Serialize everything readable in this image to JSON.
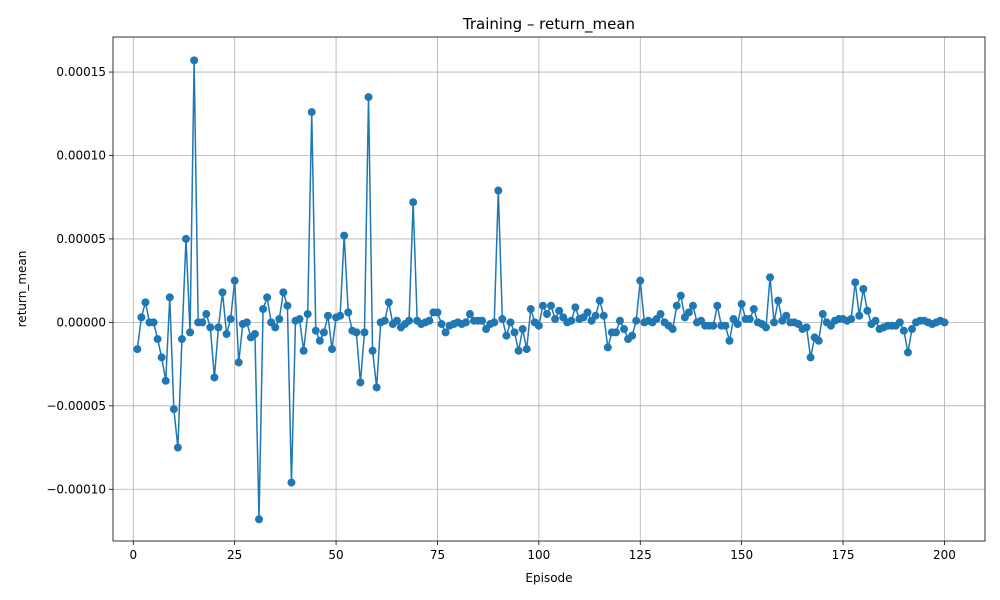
{
  "chart_data": {
    "type": "line",
    "title": "Training – return_mean",
    "xlabel": "Episode",
    "ylabel": "return_mean",
    "xlim": [
      -5,
      210
    ],
    "ylim": [
      -0.000131,
      0.000171
    ],
    "xticks": [
      0,
      25,
      50,
      75,
      100,
      125,
      150,
      175,
      200
    ],
    "xtick_labels": [
      "0",
      "25",
      "50",
      "75",
      "100",
      "125",
      "150",
      "175",
      "200"
    ],
    "yticks": [
      -0.0001,
      -5e-05,
      0,
      5e-05,
      0.0001,
      0.00015
    ],
    "ytick_labels": [
      "−0.00010",
      "−0.00005",
      "0.00000",
      "0.00005",
      "0.00010",
      "0.00015"
    ],
    "grid": true,
    "series": [
      {
        "name": "",
        "color": "#1f77b4",
        "marker": "circle",
        "x": [
          1,
          2,
          3,
          4,
          5,
          6,
          7,
          8,
          9,
          10,
          11,
          12,
          13,
          14,
          15,
          16,
          17,
          18,
          19,
          20,
          21,
          22,
          23,
          24,
          25,
          26,
          27,
          28,
          29,
          30,
          31,
          32,
          33,
          34,
          35,
          36,
          37,
          38,
          39,
          40,
          41,
          42,
          43,
          44,
          45,
          46,
          47,
          48,
          49,
          50,
          51,
          52,
          53,
          54,
          55,
          56,
          57,
          58,
          59,
          60,
          61,
          62,
          63,
          64,
          65,
          66,
          67,
          68,
          69,
          70,
          71,
          72,
          73,
          74,
          75,
          76,
          77,
          78,
          79,
          80,
          81,
          82,
          83,
          84,
          85,
          86,
          87,
          88,
          89,
          90,
          91,
          92,
          93,
          94,
          95,
          96,
          97,
          98,
          99,
          100,
          101,
          102,
          103,
          104,
          105,
          106,
          107,
          108,
          109,
          110,
          111,
          112,
          113,
          114,
          115,
          116,
          117,
          118,
          119,
          120,
          121,
          122,
          123,
          124,
          125,
          126,
          127,
          128,
          129,
          130,
          131,
          132,
          133,
          134,
          135,
          136,
          137,
          138,
          139,
          140,
          141,
          142,
          143,
          144,
          145,
          146,
          147,
          148,
          149,
          150,
          151,
          152,
          153,
          154,
          155,
          156,
          157,
          158,
          159,
          160,
          161,
          162,
          163,
          164,
          165,
          166,
          167,
          168,
          169,
          170,
          171,
          172,
          173,
          174,
          175,
          176,
          177,
          178,
          179,
          180,
          181,
          182,
          183,
          184,
          185,
          186,
          187,
          188,
          189,
          190,
          191,
          192,
          193,
          194,
          195,
          196,
          197,
          198,
          199,
          200
        ],
        "y": [
          -1.6e-05,
          3e-06,
          1.2e-05,
          0,
          0,
          -1e-05,
          -2.1e-05,
          -3.5e-05,
          1.5e-05,
          -5.2e-05,
          -7.5e-05,
          -1e-05,
          5e-05,
          -6e-06,
          0.000157,
          0,
          0,
          5e-06,
          -3e-06,
          -3.3e-05,
          -3e-06,
          1.8e-05,
          -7e-06,
          2e-06,
          2.5e-05,
          -2.4e-05,
          -1e-06,
          0,
          -9e-06,
          -7e-06,
          -0.000118,
          8e-06,
          1.5e-05,
          0,
          -3e-06,
          2e-06,
          1.8e-05,
          1e-05,
          -9.6e-05,
          1e-06,
          2e-06,
          -1.7e-05,
          5e-06,
          0.000126,
          -5e-06,
          -1.1e-05,
          -6e-06,
          4e-06,
          -1.6e-05,
          3e-06,
          4e-06,
          5.2e-05,
          6e-06,
          -5e-06,
          -6e-06,
          -3.6e-05,
          -6e-06,
          0.000135,
          -1.7e-05,
          -3.9e-05,
          0,
          1e-06,
          1.2e-05,
          -1e-06,
          1e-06,
          -3e-06,
          -1e-06,
          1e-06,
          7.2e-05,
          1e-06,
          -1e-06,
          0,
          1e-06,
          6e-06,
          6e-06,
          -1e-06,
          -6e-06,
          -2e-06,
          -1e-06,
          0,
          -1e-06,
          0,
          5e-06,
          1e-06,
          1e-06,
          1e-06,
          -4e-06,
          -1e-06,
          0,
          7.9e-05,
          2e-06,
          -8e-06,
          0,
          -6e-06,
          -1.7e-05,
          -4e-06,
          -1.6e-05,
          8e-06,
          0,
          -2e-06,
          1e-05,
          5e-06,
          1e-05,
          2e-06,
          7e-06,
          3e-06,
          0,
          1e-06,
          9e-06,
          2e-06,
          3e-06,
          6e-06,
          1e-06,
          4e-06,
          1.3e-05,
          4e-06,
          -1.5e-05,
          -6e-06,
          -6e-06,
          1e-06,
          -4e-06,
          -1e-05,
          -8e-06,
          1e-06,
          2.5e-05,
          0,
          1e-06,
          0,
          2e-06,
          5e-06,
          0,
          -2e-06,
          -4e-06,
          1e-05,
          1.6e-05,
          3e-06,
          6e-06,
          1e-05,
          0,
          1e-06,
          -2e-06,
          -2e-06,
          -2e-06,
          1e-05,
          -2e-06,
          -2e-06,
          -1.1e-05,
          2e-06,
          -1e-06,
          1.1e-05,
          2e-06,
          2e-06,
          8e-06,
          0,
          -1e-06,
          -3e-06,
          2.7e-05,
          0,
          1.3e-05,
          1e-06,
          4e-06,
          0,
          0,
          -1e-06,
          -4e-06,
          -3e-06,
          -2.1e-05,
          -9e-06,
          -1.1e-05,
          5e-06,
          0,
          -2e-06,
          1e-06,
          2e-06,
          2e-06,
          1e-06,
          2e-06,
          2.4e-05,
          4e-06,
          2e-05,
          7e-06,
          -1e-06,
          1e-06,
          -4e-06,
          -3e-06,
          -2e-06,
          -2e-06,
          -2e-06,
          0,
          -5e-06,
          -1.8e-05,
          -4e-06,
          0,
          1e-06,
          1e-06,
          0,
          -1e-06,
          0,
          1e-06,
          0
        ]
      }
    ]
  }
}
